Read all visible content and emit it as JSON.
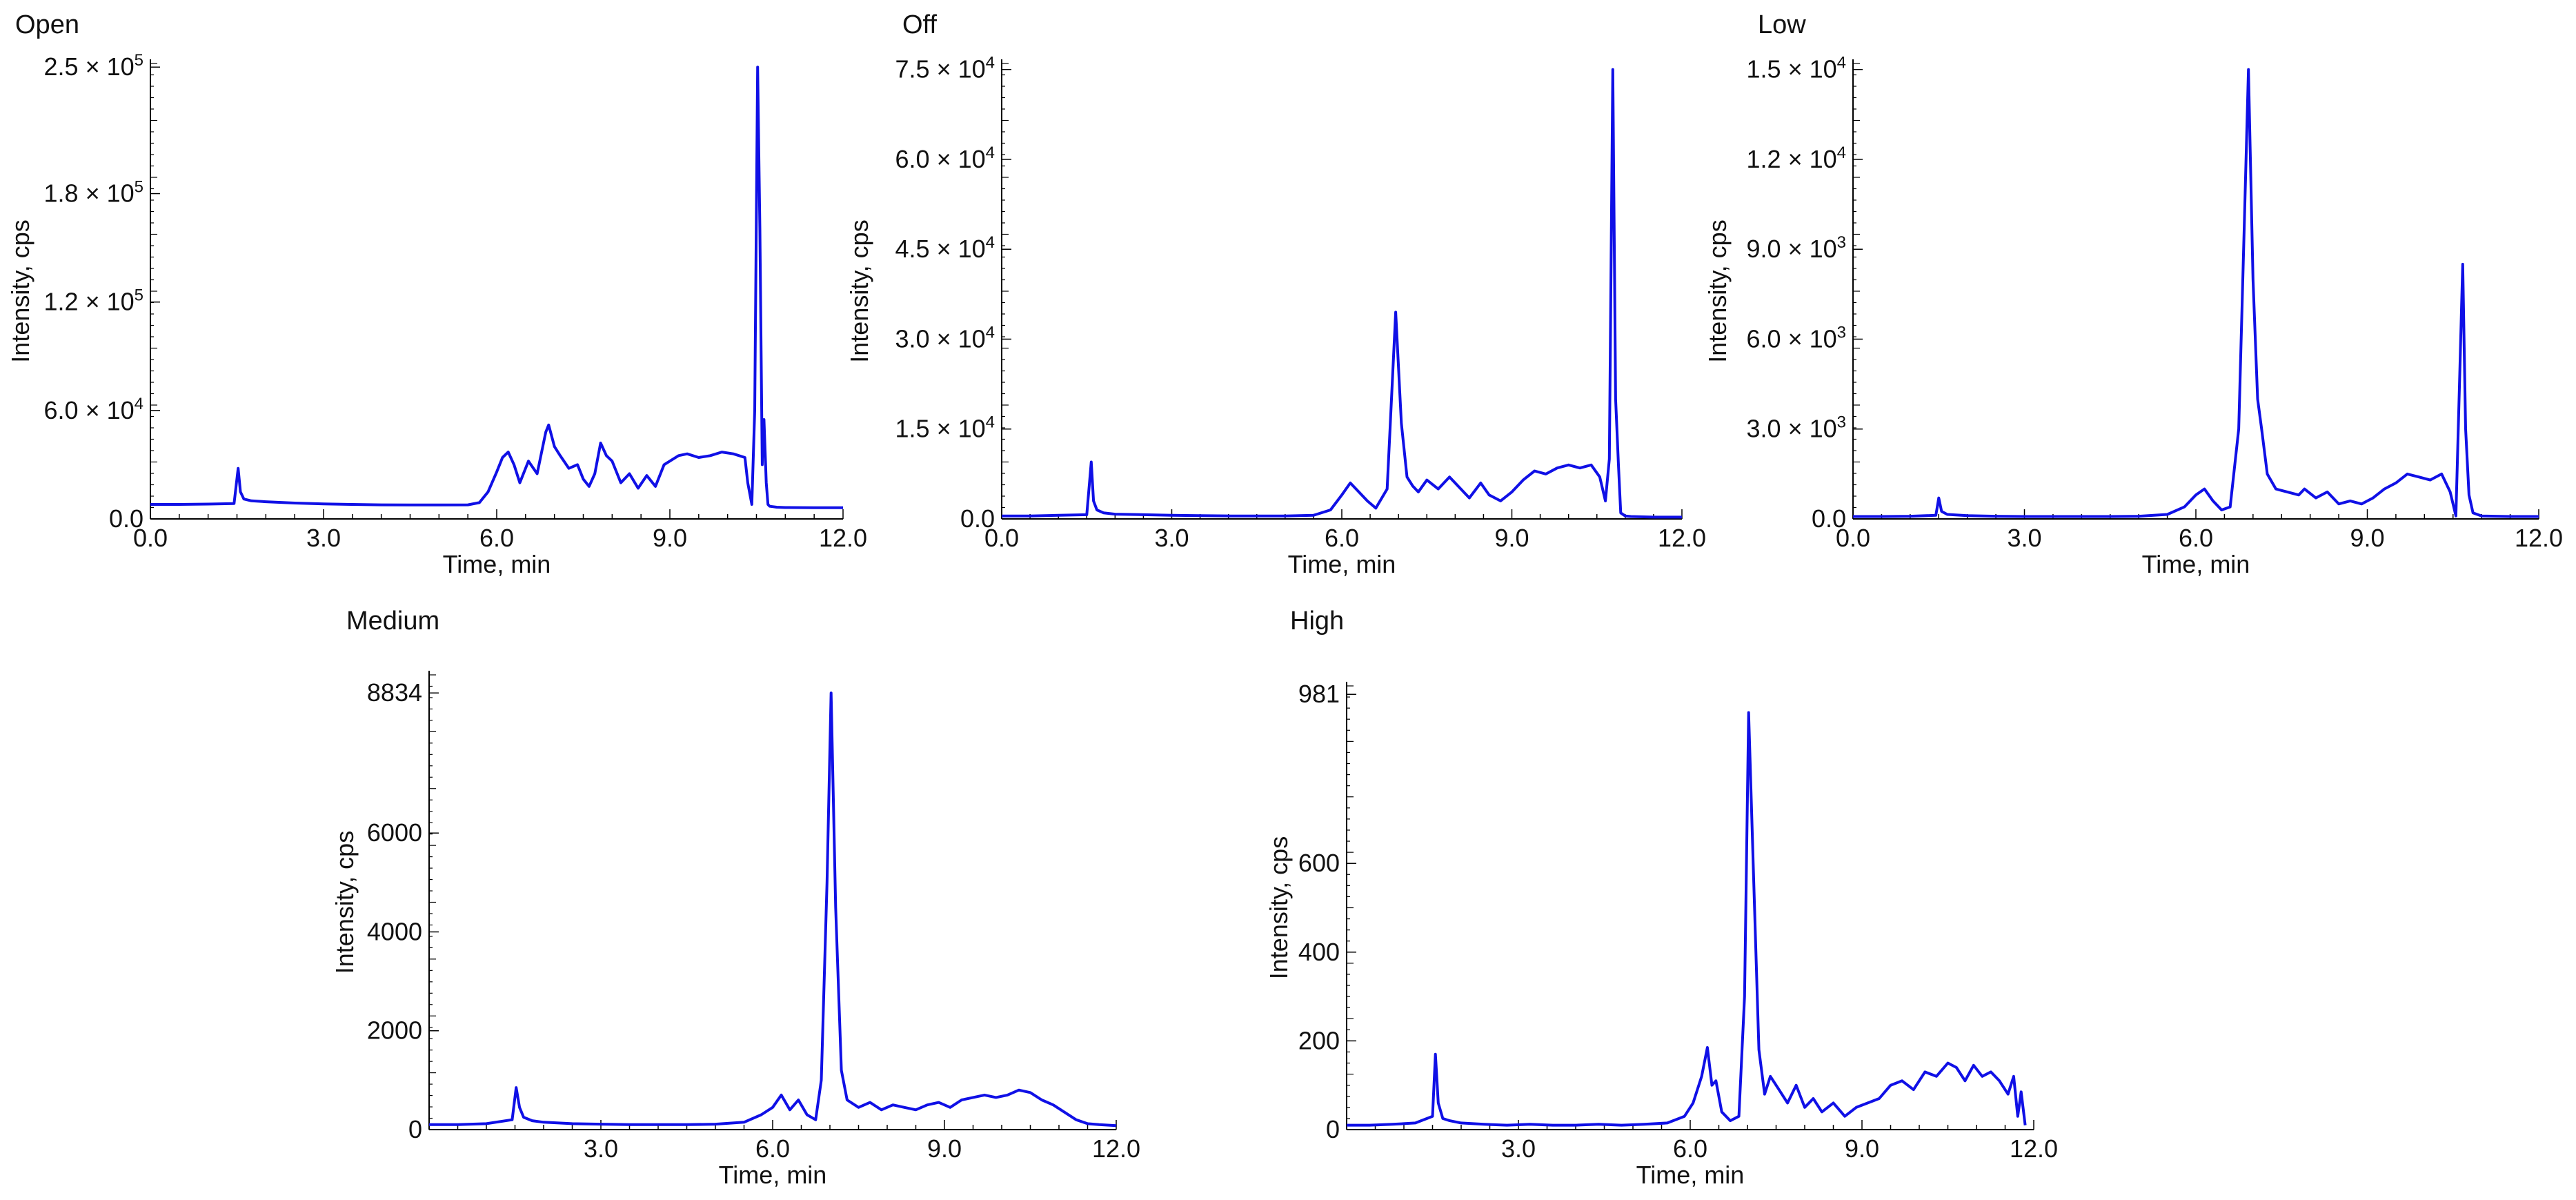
{
  "chart_data": [
    {
      "type": "line",
      "title": "Open",
      "xlabel": "Time, min",
      "ylabel": "Intensity, cps",
      "xlim": [
        0,
        12
      ],
      "ylim": [
        0,
        252000
      ],
      "x_ticks": [
        0,
        3,
        6,
        9,
        12
      ],
      "x_tick_labels": [
        "0.0",
        "3.0",
        "6.0",
        "9.0",
        "12.0"
      ],
      "y_ticks": [
        60000,
        120000,
        180000,
        250000
      ],
      "y_tick_labels": [
        {
          "mantissa": "6.0",
          "exp": "4"
        },
        {
          "mantissa": "1.2",
          "exp": "5"
        },
        {
          "mantissa": "1.8",
          "exp": "5"
        },
        {
          "mantissa": "2.5",
          "exp": "5"
        }
      ],
      "zero_label": "0.0",
      "grid": false,
      "color": "#1010e6",
      "series": [
        {
          "x": [
            0,
            0.5,
            1.0,
            1.45,
            1.52,
            1.56,
            1.62,
            1.75,
            2.0,
            2.5,
            3.0,
            3.5,
            4.0,
            4.5,
            5.0,
            5.5,
            5.7,
            5.85,
            6.0,
            6.1,
            6.2,
            6.3,
            6.4,
            6.55,
            6.7,
            6.85,
            6.9,
            7.0,
            7.1,
            7.25,
            7.4,
            7.5,
            7.6,
            7.7,
            7.8,
            7.9,
            8.0,
            8.15,
            8.3,
            8.45,
            8.6,
            8.75,
            8.9,
            9.05,
            9.15,
            9.3,
            9.5,
            9.7,
            9.9,
            10.1,
            10.3,
            10.35,
            10.42,
            10.47,
            10.52,
            10.56,
            10.6,
            10.63,
            10.67,
            10.7,
            10.73,
            10.78,
            10.85,
            11.0,
            11.5,
            12.0
          ],
          "y": [
            8000,
            8000,
            8200,
            8500,
            28000,
            15000,
            11000,
            10000,
            9500,
            8800,
            8300,
            8000,
            7800,
            7700,
            7700,
            7800,
            9000,
            15000,
            26000,
            34000,
            37000,
            30000,
            20000,
            32000,
            25000,
            48000,
            52000,
            40000,
            35000,
            28000,
            30000,
            22000,
            18000,
            25000,
            42000,
            35000,
            32000,
            20000,
            25000,
            17000,
            24000,
            18000,
            30000,
            33000,
            35000,
            36000,
            34000,
            35000,
            37000,
            36000,
            34000,
            20000,
            8000,
            60000,
            250000,
            160000,
            30000,
            55000,
            20000,
            8000,
            7000,
            6800,
            6500,
            6300,
            6200,
            6200
          ]
        }
      ]
    },
    {
      "type": "line",
      "title": "Off",
      "xlabel": "Time, min",
      "ylabel": "Intensity, cps",
      "xlim": [
        0,
        12
      ],
      "ylim": [
        0,
        76000
      ],
      "x_ticks": [
        0,
        3,
        6,
        9,
        12
      ],
      "x_tick_labels": [
        "0.0",
        "3.0",
        "6.0",
        "9.0",
        "12.0"
      ],
      "y_ticks": [
        15000,
        30000,
        45000,
        60000,
        75000
      ],
      "y_tick_labels": [
        {
          "mantissa": "1.5",
          "exp": "4"
        },
        {
          "mantissa": "3.0",
          "exp": "4"
        },
        {
          "mantissa": "4.5",
          "exp": "4"
        },
        {
          "mantissa": "6.0",
          "exp": "4"
        },
        {
          "mantissa": "7.5",
          "exp": "4"
        }
      ],
      "zero_label": "0.0",
      "grid": false,
      "color": "#1010e6",
      "series": [
        {
          "x": [
            0,
            0.5,
            1.0,
            1.5,
            1.58,
            1.62,
            1.68,
            1.8,
            2.0,
            2.5,
            3.0,
            3.5,
            4.0,
            4.5,
            5.0,
            5.5,
            5.8,
            6.0,
            6.15,
            6.3,
            6.45,
            6.6,
            6.8,
            6.95,
            7.05,
            7.15,
            7.25,
            7.35,
            7.5,
            7.7,
            7.9,
            8.05,
            8.25,
            8.45,
            8.6,
            8.8,
            9.0,
            9.2,
            9.4,
            9.6,
            9.8,
            10.0,
            10.2,
            10.4,
            10.55,
            10.65,
            10.72,
            10.78,
            10.83,
            10.88,
            10.92,
            11.0,
            11.1,
            11.5,
            12.0
          ],
          "y": [
            500,
            500,
            600,
            700,
            9500,
            3000,
            1500,
            1000,
            800,
            700,
            600,
            550,
            500,
            500,
            500,
            600,
            1500,
            4000,
            6000,
            4500,
            3000,
            1800,
            5000,
            34500,
            16000,
            7000,
            5500,
            4500,
            6500,
            5000,
            7000,
            5500,
            3500,
            6000,
            4000,
            3000,
            4500,
            6500,
            8000,
            7500,
            8500,
            9000,
            8500,
            9000,
            7000,
            3000,
            10000,
            75000,
            20000,
            9000,
            1000,
            500,
            400,
            300,
            300
          ]
        }
      ]
    },
    {
      "type": "line",
      "title": "Low",
      "xlabel": "Time, min",
      "ylabel": "Intensity, cps",
      "xlim": [
        0,
        12
      ],
      "ylim": [
        0,
        15200
      ],
      "x_ticks": [
        0,
        3,
        6,
        9,
        12
      ],
      "x_tick_labels": [
        "0.0",
        "3.0",
        "6.0",
        "9.0",
        "12.0"
      ],
      "y_ticks": [
        3000,
        6000,
        9000,
        12000,
        15000
      ],
      "y_tick_labels": [
        {
          "mantissa": "3.0",
          "exp": "3"
        },
        {
          "mantissa": "6.0",
          "exp": "3"
        },
        {
          "mantissa": "9.0",
          "exp": "3"
        },
        {
          "mantissa": "1.2",
          "exp": "4"
        },
        {
          "mantissa": "1.5",
          "exp": "4"
        }
      ],
      "zero_label": "0.0",
      "grid": false,
      "color": "#1010e6",
      "series": [
        {
          "x": [
            0,
            0.5,
            1.0,
            1.45,
            1.5,
            1.55,
            1.65,
            2.0,
            2.5,
            3.0,
            3.5,
            4.0,
            4.5,
            5.0,
            5.5,
            5.8,
            6.0,
            6.15,
            6.3,
            6.45,
            6.6,
            6.75,
            6.85,
            6.92,
            7.0,
            7.08,
            7.15,
            7.25,
            7.4,
            7.6,
            7.8,
            7.9,
            8.1,
            8.3,
            8.5,
            8.7,
            8.9,
            9.1,
            9.3,
            9.5,
            9.7,
            9.9,
            10.1,
            10.3,
            10.45,
            10.55,
            10.62,
            10.67,
            10.72,
            10.78,
            10.85,
            11.0,
            11.5,
            12.0
          ],
          "y": [
            80,
            80,
            90,
            120,
            700,
            250,
            150,
            110,
            90,
            80,
            80,
            80,
            80,
            90,
            150,
            400,
            800,
            1000,
            600,
            300,
            400,
            3000,
            10000,
            15000,
            8000,
            4000,
            3000,
            1500,
            1000,
            900,
            800,
            1000,
            700,
            900,
            500,
            600,
            500,
            700,
            1000,
            1200,
            1500,
            1400,
            1300,
            1500,
            900,
            100,
            5000,
            8500,
            3000,
            800,
            200,
            100,
            80,
            80
          ]
        }
      ]
    },
    {
      "type": "line",
      "title": "Medium",
      "xlabel": "Time, min",
      "ylabel": "Intensity, cps",
      "xlim": [
        0,
        12
      ],
      "ylim": [
        0,
        9200
      ],
      "x_ticks": [
        0,
        3,
        6,
        9,
        12
      ],
      "x_tick_labels": [
        "",
        "3.0",
        "6.0",
        "9.0",
        "12.0"
      ],
      "y_ticks": [
        2000,
        4000,
        6000,
        8834
      ],
      "y_tick_labels": [
        {
          "mantissa": "2000",
          "exp": ""
        },
        {
          "mantissa": "4000",
          "exp": ""
        },
        {
          "mantissa": "6000",
          "exp": ""
        },
        {
          "mantissa": "8834",
          "exp": ""
        }
      ],
      "zero_label": "0",
      "grid": false,
      "color": "#1010e6",
      "series": [
        {
          "x": [
            0,
            0.5,
            1.0,
            1.45,
            1.52,
            1.58,
            1.65,
            1.8,
            2.0,
            2.5,
            3.0,
            3.5,
            4.0,
            4.5,
            5.0,
            5.5,
            5.8,
            6.0,
            6.15,
            6.3,
            6.45,
            6.6,
            6.75,
            6.85,
            6.95,
            7.02,
            7.1,
            7.2,
            7.3,
            7.5,
            7.7,
            7.9,
            8.1,
            8.3,
            8.5,
            8.7,
            8.9,
            9.1,
            9.3,
            9.5,
            9.7,
            9.9,
            10.1,
            10.3,
            10.5,
            10.7,
            10.9,
            11.1,
            11.3,
            11.5,
            11.7,
            12.0
          ],
          "y": [
            100,
            100,
            120,
            200,
            850,
            450,
            250,
            180,
            150,
            120,
            110,
            100,
            100,
            100,
            110,
            150,
            300,
            450,
            700,
            400,
            600,
            300,
            200,
            1000,
            5000,
            8834,
            4500,
            1200,
            600,
            450,
            550,
            400,
            500,
            450,
            400,
            500,
            550,
            450,
            600,
            650,
            700,
            650,
            700,
            800,
            750,
            600,
            500,
            350,
            200,
            120,
            100,
            80
          ]
        }
      ]
    },
    {
      "type": "line",
      "title": "High",
      "xlabel": "Time, min",
      "ylabel": "Intensity, cps",
      "xlim": [
        0,
        12
      ],
      "ylim": [
        0,
        1000
      ],
      "x_ticks": [
        0,
        3,
        6,
        9,
        12
      ],
      "x_tick_labels": [
        "",
        "3.0",
        "6.0",
        "9.0",
        "12.0"
      ],
      "y_ticks": [
        200,
        400,
        600,
        981
      ],
      "y_tick_labels": [
        {
          "mantissa": "200",
          "exp": ""
        },
        {
          "mantissa": "400",
          "exp": ""
        },
        {
          "mantissa": "600",
          "exp": ""
        },
        {
          "mantissa": "981",
          "exp": ""
        }
      ],
      "zero_label": "0",
      "grid": false,
      "color": "#1010e6",
      "series": [
        {
          "x": [
            0,
            0.4,
            0.8,
            1.2,
            1.5,
            1.55,
            1.6,
            1.68,
            1.8,
            2.0,
            2.4,
            2.8,
            3.2,
            3.6,
            4.0,
            4.4,
            4.8,
            5.2,
            5.6,
            5.9,
            6.05,
            6.2,
            6.3,
            6.38,
            6.45,
            6.55,
            6.7,
            6.85,
            6.95,
            7.02,
            7.1,
            7.2,
            7.3,
            7.4,
            7.55,
            7.7,
            7.85,
            8.0,
            8.15,
            8.3,
            8.5,
            8.7,
            8.9,
            9.1,
            9.3,
            9.5,
            9.7,
            9.9,
            10.1,
            10.3,
            10.5,
            10.65,
            10.8,
            10.95,
            11.1,
            11.25,
            11.4,
            11.55,
            11.65,
            11.72,
            11.78,
            11.85
          ],
          "y": [
            10,
            10,
            12,
            15,
            30,
            170,
            60,
            25,
            20,
            15,
            12,
            10,
            12,
            10,
            10,
            12,
            10,
            12,
            15,
            30,
            60,
            120,
            185,
            100,
            110,
            40,
            20,
            30,
            300,
            940,
            600,
            180,
            80,
            120,
            90,
            60,
            100,
            50,
            70,
            40,
            60,
            30,
            50,
            60,
            70,
            100,
            110,
            90,
            130,
            120,
            150,
            140,
            110,
            145,
            120,
            130,
            110,
            80,
            120,
            30,
            85,
            10
          ]
        }
      ]
    }
  ]
}
